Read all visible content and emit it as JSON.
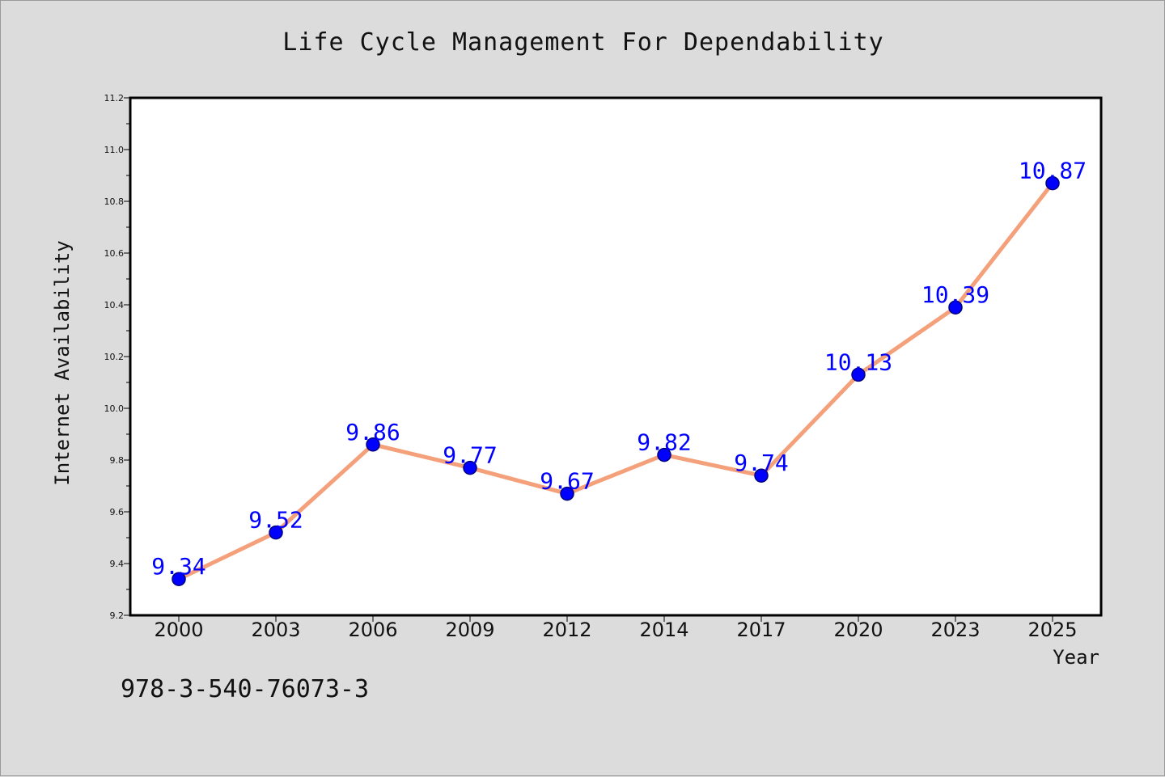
{
  "chart_data": {
    "type": "line",
    "title": "Life Cycle Management For Dependability",
    "xlabel": "Year",
    "ylabel": "Internet Availability",
    "categories": [
      "2000",
      "2003",
      "2006",
      "2009",
      "2012",
      "2014",
      "2017",
      "2020",
      "2023",
      "2025"
    ],
    "series": [
      {
        "values": [
          9.34,
          9.52,
          9.86,
          9.77,
          9.67,
          9.82,
          9.74,
          10.13,
          10.39,
          10.87
        ],
        "data_labels": [
          "9.34",
          "9.52",
          "9.86",
          "9.77",
          "9.67",
          "9.82",
          "9.74",
          "10.13",
          "10.39",
          "10.87"
        ]
      }
    ],
    "ylim": [
      9.2,
      11.2
    ],
    "yticks": [
      "9.2",
      "9.4",
      "9.6",
      "9.8",
      "10.0",
      "10.2",
      "10.4",
      "10.6",
      "10.8",
      "11.0",
      "11.2"
    ],
    "grid": false,
    "colors": {
      "line": "#f4a07a",
      "marker": "#0000ff",
      "marker_edge": "#000080",
      "data_label": "#0000ff",
      "plot_bg": "#ffffff",
      "figure_bg": "#dcdcdc"
    }
  },
  "footer": {
    "isbn": "978-3-540-76073-3"
  }
}
